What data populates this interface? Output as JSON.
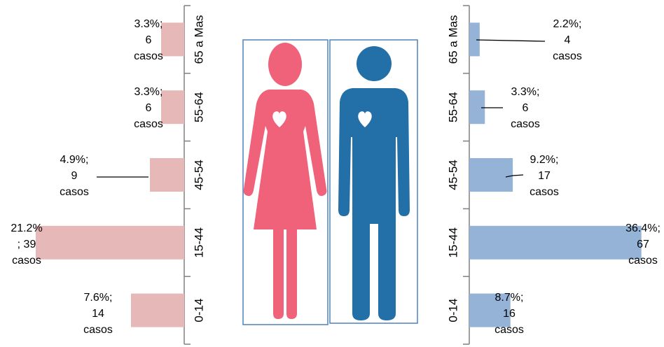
{
  "chart_data": [
    {
      "type": "bar",
      "orientation": "horizontal",
      "direction": "leftward",
      "categories": [
        "65 a Mas",
        "55-64",
        "45-54",
        "15-44",
        "0-14"
      ],
      "values": [
        3.3,
        3.3,
        4.9,
        21.2,
        7.6
      ],
      "data_labels": [
        [
          "3.3%;",
          "6",
          "casos"
        ],
        [
          "3.3%;",
          "6",
          "casos"
        ],
        [
          "4.9%;",
          "9",
          "casos"
        ],
        [
          "21.2%",
          "; 39",
          "casos"
        ],
        [
          "7.6%;",
          "14",
          "casos"
        ]
      ],
      "bar_color": "#e6b9b8",
      "figure_color": "#f0627a",
      "xlim": [
        0,
        28
      ]
    },
    {
      "type": "bar",
      "orientation": "horizontal",
      "direction": "rightward",
      "categories": [
        "65 a Mas",
        "55-64",
        "45-54",
        "15-44",
        "0-14"
      ],
      "values": [
        2.2,
        3.3,
        9.2,
        36.4,
        8.7
      ],
      "data_labels": [
        [
          "2.2%;",
          "4",
          "casos"
        ],
        [
          "3.3%;",
          "6",
          "casos"
        ],
        [
          "9.2%;",
          "17",
          "casos"
        ],
        [
          "36.4%;",
          "67",
          "casos"
        ],
        [
          "8.7%;",
          "16",
          "casos"
        ]
      ],
      "bar_color": "#95b3d7",
      "figure_color": "#236fa8",
      "xlim": [
        0,
        40
      ]
    }
  ],
  "colors": {
    "axis": "#808080",
    "frame": "#4f81bd",
    "heart": "#ffffff"
  },
  "icons": [
    "female-figure-icon",
    "male-figure-icon",
    "heart-icon"
  ]
}
